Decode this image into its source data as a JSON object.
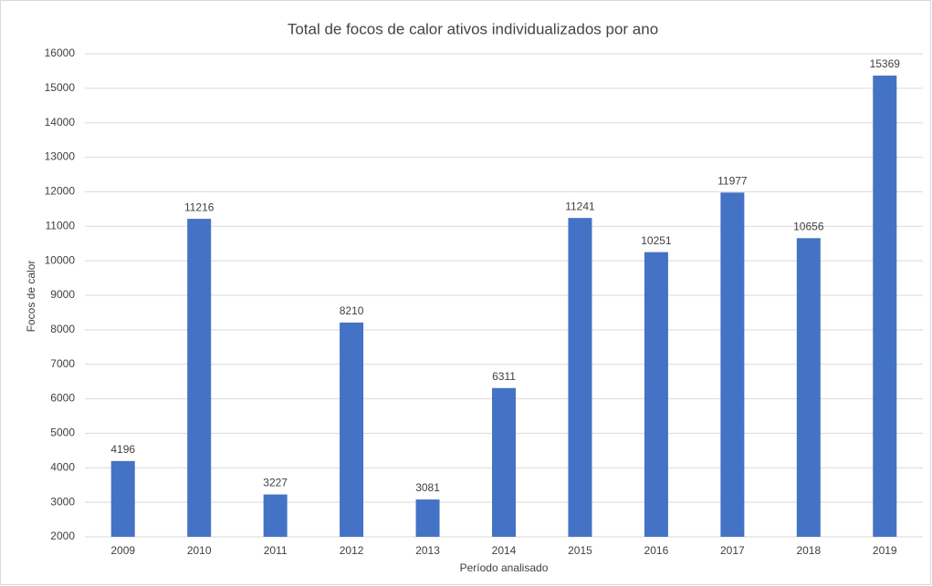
{
  "chart_data": {
    "type": "bar",
    "title": "Total de focos de calor ativos individualizados por ano",
    "xlabel": "Período analisado",
    "ylabel": "Focos de calor",
    "categories": [
      "2009",
      "2010",
      "2011",
      "2012",
      "2013",
      "2014",
      "2015",
      "2016",
      "2017",
      "2018",
      "2019"
    ],
    "values": [
      4196,
      11216,
      3227,
      8210,
      3081,
      6311,
      11241,
      10251,
      11977,
      10656,
      15369
    ],
    "color": "#4472c4",
    "ylim": [
      2000,
      16000
    ],
    "yticks": [
      2000,
      3000,
      4000,
      5000,
      6000,
      7000,
      8000,
      9000,
      10000,
      11000,
      12000,
      13000,
      14000,
      15000,
      16000
    ],
    "grid": true,
    "data_labels": true
  }
}
